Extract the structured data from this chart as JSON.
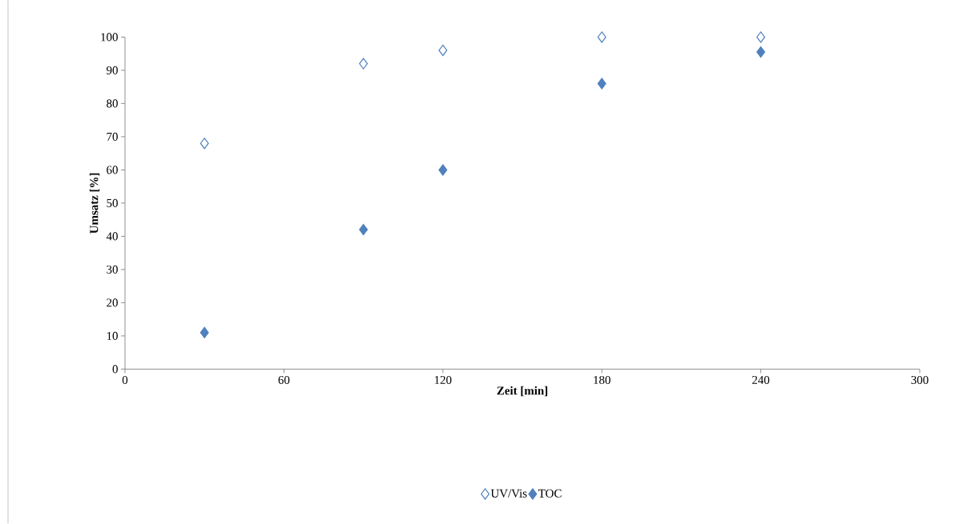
{
  "chart_data": {
    "type": "scatter",
    "xlabel": "Zeit [min]",
    "ylabel": "Umsatz [%]",
    "x": [
      30,
      90,
      120,
      180,
      240
    ],
    "series": [
      {
        "name": "UV/Vis",
        "color": "#4f81bd",
        "values": [
          68,
          92,
          96,
          100,
          100
        ]
      },
      {
        "name": "TOC",
        "color": "#4f81bd",
        "values": [
          11,
          42,
          60,
          86,
          95.5
        ]
      }
    ],
    "xlim": [
      0,
      300
    ],
    "xticks": [
      0,
      60,
      120,
      180,
      240,
      300
    ],
    "ylim": [
      0,
      100
    ],
    "yticks": [
      0,
      10,
      20,
      30,
      40,
      50,
      60,
      70,
      80,
      90,
      100
    ],
    "grid": false,
    "legend": "bottom",
    "marker": "diamond"
  }
}
